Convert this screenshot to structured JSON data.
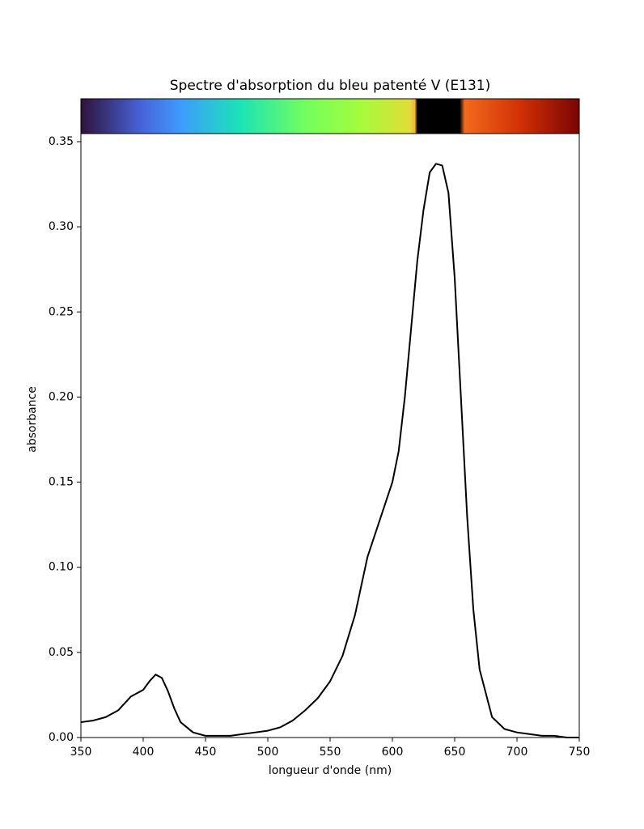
{
  "chart_data": {
    "type": "line",
    "title": "Spectre d'absorption du bleu patenté V (E131)",
    "x_label": "longueur d'onde (nm)",
    "y_label": "absorbance",
    "x": [
      350,
      360,
      370,
      380,
      390,
      400,
      405,
      410,
      415,
      420,
      425,
      430,
      440,
      450,
      460,
      470,
      480,
      490,
      500,
      510,
      520,
      530,
      540,
      550,
      560,
      570,
      580,
      590,
      600,
      605,
      610,
      615,
      620,
      625,
      630,
      635,
      640,
      645,
      650,
      655,
      660,
      665,
      670,
      680,
      690,
      700,
      710,
      720,
      730,
      740,
      750
    ],
    "series": [
      {
        "name": "absorbance",
        "color": "#000000",
        "values": [
          0.009,
          0.01,
          0.012,
          0.016,
          0.024,
          0.028,
          0.033,
          0.037,
          0.035,
          0.027,
          0.017,
          0.009,
          0.003,
          0.001,
          0.001,
          0.001,
          0.002,
          0.003,
          0.004,
          0.006,
          0.01,
          0.016,
          0.023,
          0.033,
          0.048,
          0.072,
          0.106,
          0.128,
          0.15,
          0.168,
          0.2,
          0.24,
          0.28,
          0.31,
          0.332,
          0.337,
          0.336,
          0.32,
          0.27,
          0.2,
          0.13,
          0.075,
          0.04,
          0.012,
          0.005,
          0.003,
          0.002,
          0.001,
          0.001,
          0.0,
          0.0
        ]
      }
    ],
    "xlim": [
      350,
      750
    ],
    "ylim": [
      0,
      0.35
    ],
    "xticks": [
      350,
      400,
      450,
      500,
      550,
      600,
      650,
      700,
      750
    ],
    "yticks": [
      {
        "value": 0,
        "label": "0.00"
      },
      {
        "value": 0.05,
        "label": "0.05"
      },
      {
        "value": 0.1,
        "label": "0.10"
      },
      {
        "value": 0.15,
        "label": "0.15"
      },
      {
        "value": 0.2,
        "label": "0.20"
      },
      {
        "value": 0.25,
        "label": "0.25"
      },
      {
        "value": 0.3,
        "label": "0.30"
      },
      {
        "value": 0.35,
        "label": "0.35"
      }
    ],
    "grid": false
  }
}
